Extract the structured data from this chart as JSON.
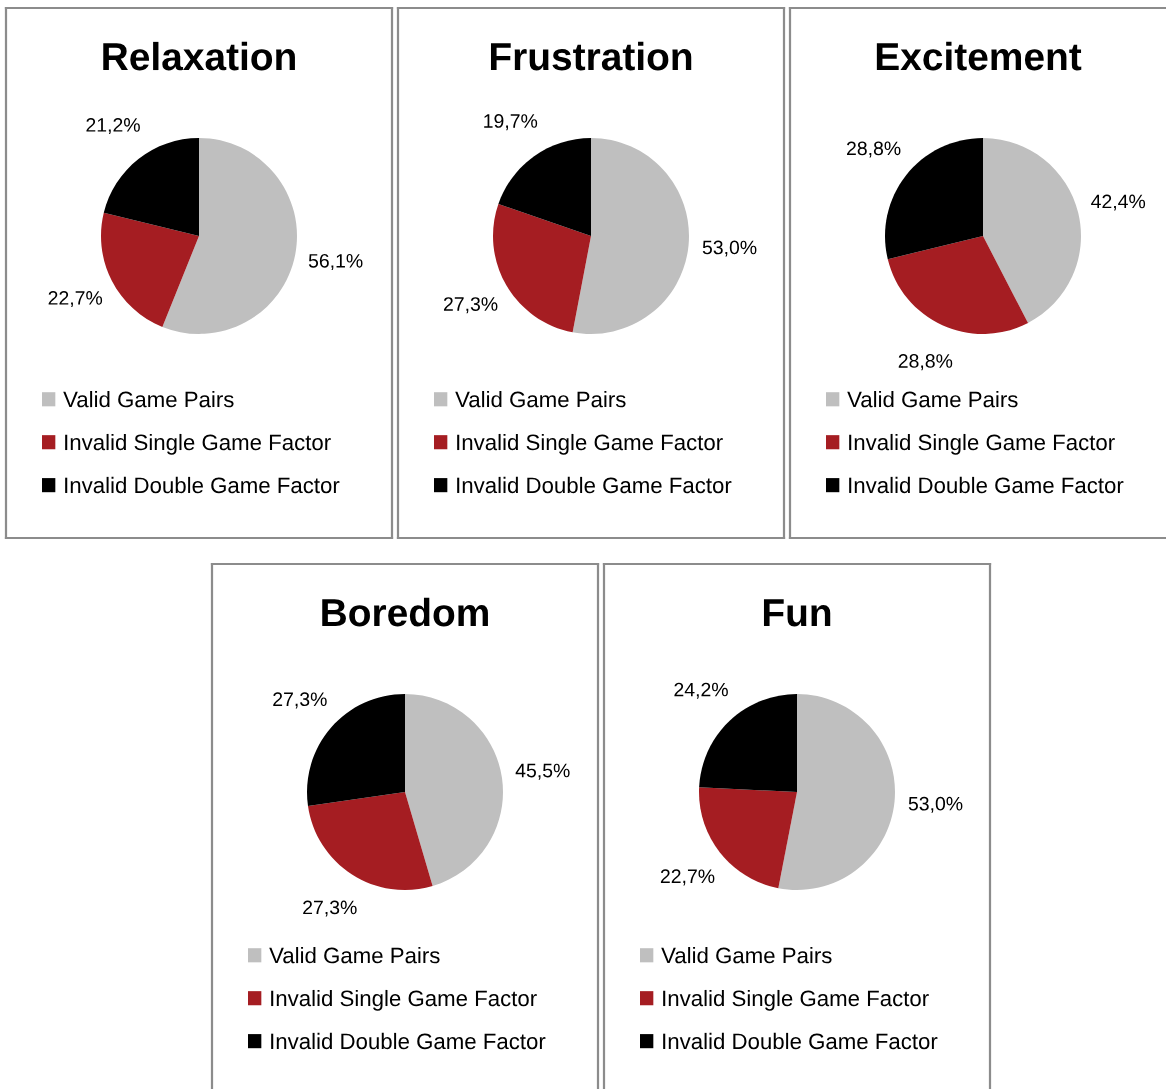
{
  "chart_data": [
    {
      "type": "pie",
      "title": "Relaxation",
      "categories": [
        "Valid Game Pairs",
        "Invalid Single Game Factor",
        "Invalid Double Game Factor"
      ],
      "values": [
        56.1,
        22.7,
        21.2
      ],
      "colors": [
        "#bfbfbf",
        "#a51d22",
        "#000000"
      ],
      "value_labels": [
        "56,1%",
        "22,7%",
        "21,2%"
      ],
      "legend": "bottom"
    },
    {
      "type": "pie",
      "title": "Frustration",
      "categories": [
        "Valid Game Pairs",
        "Invalid Single Game Factor",
        "Invalid Double Game Factor"
      ],
      "values": [
        53.0,
        27.3,
        19.7
      ],
      "colors": [
        "#bfbfbf",
        "#a51d22",
        "#000000"
      ],
      "value_labels": [
        "53,0%",
        "27,3%",
        "19,7%"
      ],
      "legend": "bottom"
    },
    {
      "type": "pie",
      "title": "Excitement",
      "categories": [
        "Valid Game Pairs",
        "Invalid Single Game Factor",
        "Invalid Double Game Factor"
      ],
      "values": [
        42.4,
        28.8,
        28.8
      ],
      "colors": [
        "#bfbfbf",
        "#a51d22",
        "#000000"
      ],
      "value_labels": [
        "42,4%",
        "28,8%",
        "28,8%"
      ],
      "legend": "bottom"
    },
    {
      "type": "pie",
      "title": "Boredom",
      "categories": [
        "Valid Game Pairs",
        "Invalid Single Game Factor",
        "Invalid Double Game Factor"
      ],
      "values": [
        45.5,
        27.3,
        27.3
      ],
      "colors": [
        "#bfbfbf",
        "#a51d22",
        "#000000"
      ],
      "value_labels": [
        "45,5%",
        "27,3%",
        "27,3%"
      ],
      "legend": "bottom"
    },
    {
      "type": "pie",
      "title": "Fun",
      "categories": [
        "Valid Game Pairs",
        "Invalid Single Game Factor",
        "Invalid Double Game Factor"
      ],
      "values": [
        53.0,
        22.7,
        24.2
      ],
      "colors": [
        "#bfbfbf",
        "#a51d22",
        "#000000"
      ],
      "value_labels": [
        "53,0%",
        "22,7%",
        "24,2%"
      ],
      "legend": "bottom"
    }
  ]
}
